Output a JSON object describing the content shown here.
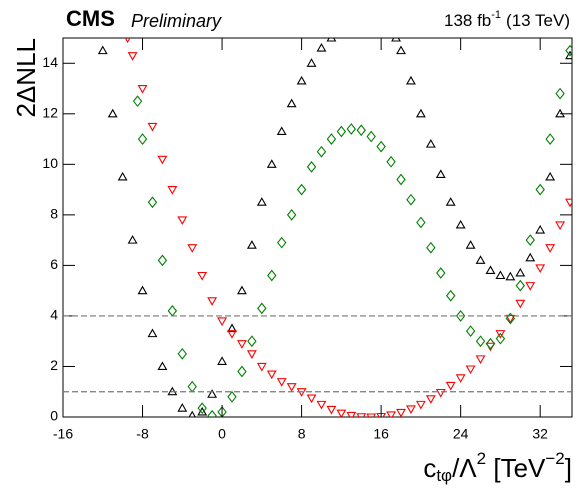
{
  "chart_data": {
    "type": "scatter",
    "title": {
      "experiment": "CMS",
      "status": "Preliminary"
    },
    "lumi": {
      "value": "138 fb",
      "sup": "-1",
      "energy": "(13 TeV)"
    },
    "ylabel": "2ΔNLL",
    "xlabel": {
      "base": "c",
      "sub": "tφ",
      "mid": "/Λ",
      "sup1": "2",
      "unit": " [TeV",
      "sup2": "−2",
      "end": "]"
    },
    "xlim": [
      -16,
      35.2
    ],
    "ylim": [
      0,
      15
    ],
    "xticks": [
      -16,
      -8,
      0,
      8,
      16,
      24,
      32
    ],
    "yticks": [
      0,
      2,
      4,
      6,
      8,
      10,
      12,
      14
    ],
    "hlines": [
      1,
      4
    ],
    "series": [
      {
        "marker": "triangle-up",
        "color": "#000000",
        "x": [
          -12,
          -11,
          -10,
          -9,
          -8,
          -7,
          -6,
          -5,
          -4,
          -3,
          -2,
          -1,
          0,
          1,
          2,
          3,
          4,
          5,
          6,
          7,
          8,
          9,
          10,
          11,
          17.5,
          18,
          19,
          20,
          21,
          22,
          23,
          24,
          25,
          26,
          27,
          28,
          29,
          30,
          31,
          32,
          33,
          34,
          35
        ],
        "values": [
          14.5,
          12,
          9.5,
          7,
          5,
          3.3,
          2,
          1,
          0.35,
          0.05,
          0.2,
          0.9,
          2.2,
          3.5,
          5,
          6.8,
          8.5,
          10,
          11.3,
          12.4,
          13.3,
          14,
          14.6,
          15,
          15,
          14.5,
          13.3,
          12,
          10.8,
          9.6,
          8.5,
          7.6,
          6.8,
          6.2,
          5.8,
          5.6,
          5.55,
          5.7,
          6.3,
          7.4,
          9.5,
          12,
          14.3
        ]
      },
      {
        "marker": "triangle-down",
        "color": "#ff0000",
        "x": [
          -9.5,
          -9,
          -8,
          -7,
          -6,
          -5,
          -4,
          -3,
          -2,
          -1,
          0,
          1,
          2,
          3,
          4,
          5,
          6,
          7,
          8,
          9,
          10,
          11,
          12,
          13,
          14,
          15,
          16,
          17,
          18,
          19,
          20,
          21,
          22,
          23,
          24,
          25,
          26,
          27,
          28,
          29,
          30,
          31,
          32,
          33,
          34,
          35
        ],
        "values": [
          15,
          14.3,
          13,
          11.5,
          10.2,
          9,
          7.8,
          6.7,
          5.6,
          4.6,
          3.8,
          3.3,
          2.9,
          2.5,
          2,
          1.7,
          1.4,
          1.2,
          1,
          0.75,
          0.5,
          0.3,
          0.15,
          0.06,
          0.01,
          0,
          0.02,
          0.08,
          0.18,
          0.32,
          0.5,
          0.72,
          0.97,
          1.25,
          1.55,
          1.9,
          2.3,
          2.8,
          3.3,
          3.9,
          4.5,
          5.2,
          5.9,
          6.7,
          7.6,
          8.5
        ]
      },
      {
        "marker": "diamond",
        "color": "#008000",
        "x": [
          -8.5,
          -8,
          -7,
          -6,
          -5,
          -4,
          -3,
          -2,
          -1,
          0,
          1,
          2,
          3,
          4,
          5,
          6,
          7,
          8,
          9,
          10,
          11,
          12,
          13,
          14,
          15,
          16,
          17,
          18,
          19,
          20,
          21,
          22,
          23,
          24,
          25,
          26,
          27,
          28,
          29,
          30,
          31,
          32,
          33,
          34,
          35
        ],
        "values": [
          12.5,
          11,
          8.5,
          6.2,
          4.2,
          2.5,
          1.2,
          0.35,
          0.05,
          0.2,
          0.8,
          1.8,
          3,
          4.3,
          5.6,
          6.9,
          8,
          9,
          9.9,
          10.5,
          11,
          11.3,
          11.4,
          11.35,
          11.1,
          10.7,
          10.1,
          9.4,
          8.6,
          7.7,
          6.7,
          5.7,
          4.8,
          4,
          3.4,
          3,
          2.9,
          3.1,
          3.9,
          5.2,
          7,
          9,
          11,
          12.8,
          14.5
        ]
      }
    ]
  }
}
